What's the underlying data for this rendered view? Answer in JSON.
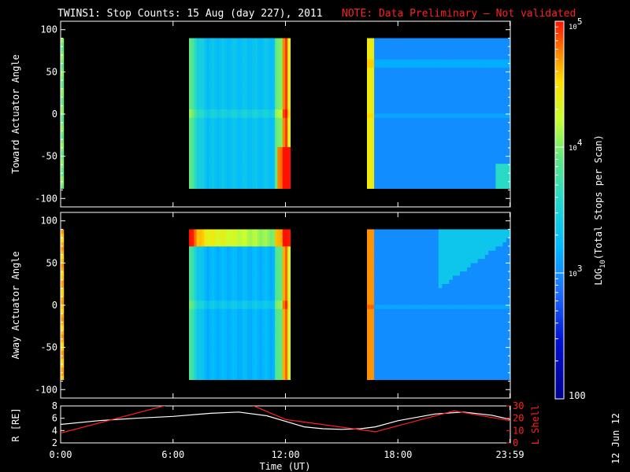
{
  "title": {
    "main": "TWINS1: Stop Counts: 15 Aug (day 227), 2011",
    "note": "NOTE: Data Preliminary – Not validated"
  },
  "date_stamp": "12 Jun 12",
  "colors": {
    "background": "#000000",
    "axes": "#ffffff",
    "note": "#ff2020",
    "r_line": "#ffffff",
    "lshell_line": "#ff2020"
  },
  "chart_data": [
    {
      "type": "heatmap",
      "name": "toward",
      "ylabel": "Toward Actuator Angle",
      "ylim": [
        -110,
        110
      ],
      "yticks": [
        100,
        50,
        0,
        -50,
        -100
      ],
      "xlim": [
        0,
        24
      ],
      "data_range": [
        -88,
        90
      ],
      "segments": [
        {
          "t0": 0.0,
          "t1": 0.15,
          "base": 3.95,
          "tag": "edge"
        },
        {
          "t0": 6.85,
          "t1": 12.25,
          "base": 3.3,
          "tag": "mid"
        },
        {
          "t0": 16.35,
          "t1": 23.98,
          "base": 3.0,
          "tag": "late"
        }
      ]
    },
    {
      "type": "heatmap",
      "name": "away",
      "ylabel": "Away Actuator Angle",
      "ylim": [
        -110,
        110
      ],
      "yticks": [
        100,
        50,
        0,
        -50,
        -100
      ],
      "xlim": [
        0,
        24
      ],
      "data_range": [
        -88,
        90
      ],
      "segments": [
        {
          "t0": 0.0,
          "t1": 0.15,
          "base": 4.6,
          "tag": "edge"
        },
        {
          "t0": 6.85,
          "t1": 12.25,
          "base": 3.2,
          "tag": "mid"
        },
        {
          "t0": 16.35,
          "t1": 23.98,
          "base": 3.0,
          "tag": "late"
        }
      ]
    },
    {
      "type": "line",
      "name": "orbit",
      "xlabel": "Time (UT)",
      "xlim": [
        0,
        24
      ],
      "xticks": [
        "0:00",
        "6:00",
        "12:00",
        "18:00",
        "23:59"
      ],
      "xtick_values": [
        0,
        6,
        12,
        18,
        23.98
      ],
      "ylabel_left": "R [RE]",
      "ylim_left": [
        2,
        8
      ],
      "yticks_left": [
        8,
        6,
        4,
        2
      ],
      "ylabel_right": "L Shell",
      "ylim_right": [
        0,
        30
      ],
      "yticks_right": [
        30,
        20,
        10,
        0
      ],
      "series": [
        {
          "axis": "left",
          "x": [
            0,
            2,
            4,
            6,
            8,
            9.5,
            11,
            12,
            13,
            14,
            15,
            16,
            16.8,
            18,
            20,
            21.5,
            23,
            24
          ],
          "y": [
            5.0,
            5.6,
            6.0,
            6.3,
            6.8,
            7.0,
            6.4,
            5.5,
            4.6,
            4.3,
            4.2,
            4.3,
            4.6,
            5.6,
            6.7,
            7.0,
            6.5,
            5.8
          ]
        },
        {
          "axis": "right",
          "x": [
            0,
            6,
            10,
            12,
            16.8,
            21,
            24
          ],
          "y": [
            8,
            32,
            32,
            19,
            9,
            26,
            18
          ]
        }
      ]
    }
  ],
  "colorbar": {
    "label_prefix": "LOG",
    "label_sub": "10",
    "label_suffix": "(Total Stops per Scan)",
    "log_min": 2,
    "log_max": 5,
    "ticks": [
      {
        "base": "10",
        "exp": "5",
        "value": 5
      },
      {
        "base": "10",
        "exp": "4",
        "value": 4
      },
      {
        "base": "10",
        "exp": "3",
        "value": 3
      },
      {
        "base": "",
        "exp": "",
        "text": "100",
        "value": 2
      }
    ]
  }
}
